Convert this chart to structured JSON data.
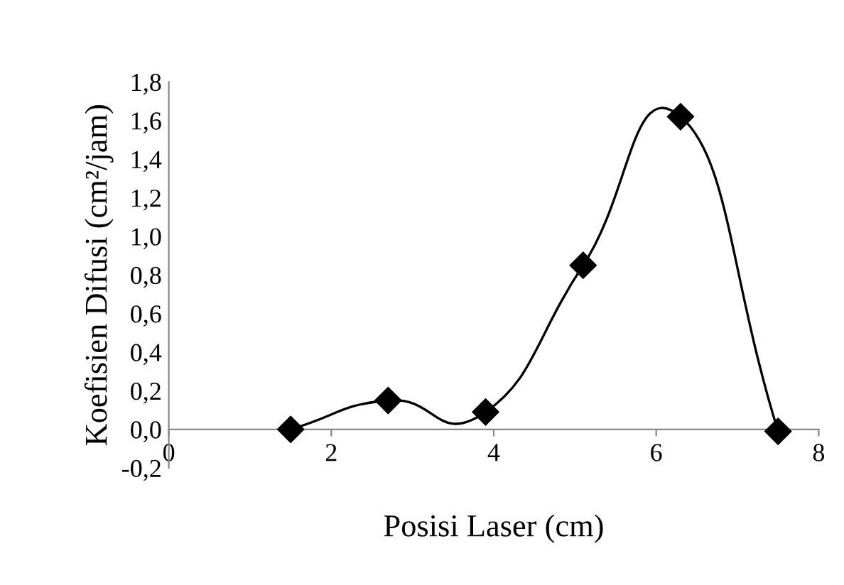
{
  "chart_data": {
    "type": "line",
    "xlabel": "Posisi Laser (cm)",
    "ylabel": "Koefisien Difusi (cm²/jam)",
    "x": [
      1.5,
      2.7,
      3.9,
      5.1,
      6.3,
      7.5
    ],
    "series": [
      {
        "color": "#000000",
        "values": [
          0.0,
          0.15,
          0.09,
          0.85,
          1.62,
          -0.01
        ]
      }
    ],
    "xlim": [
      0,
      8
    ],
    "xticks": [
      0,
      2,
      4,
      6,
      8
    ],
    "ylim": [
      -0.2,
      1.8
    ],
    "yticks": [
      {
        "value": -0.2,
        "label": "-0,2"
      },
      {
        "value": 0,
        "label": "0,0"
      },
      {
        "value": 0.2,
        "label": "0,2"
      },
      {
        "value": 0.4,
        "label": "0,4"
      },
      {
        "value": 0.6,
        "label": "0,6"
      },
      {
        "value": 0.8,
        "label": "0,8"
      },
      {
        "value": 1.0,
        "label": "1,0"
      },
      {
        "value": 1.2,
        "label": "1,2"
      },
      {
        "value": 1.4,
        "label": "1,4"
      },
      {
        "value": 1.6,
        "label": "1,6"
      },
      {
        "value": 1.8,
        "label": "1,8"
      }
    ],
    "marker": "diamond",
    "line_style": "solid",
    "grid": false,
    "legend": false
  }
}
